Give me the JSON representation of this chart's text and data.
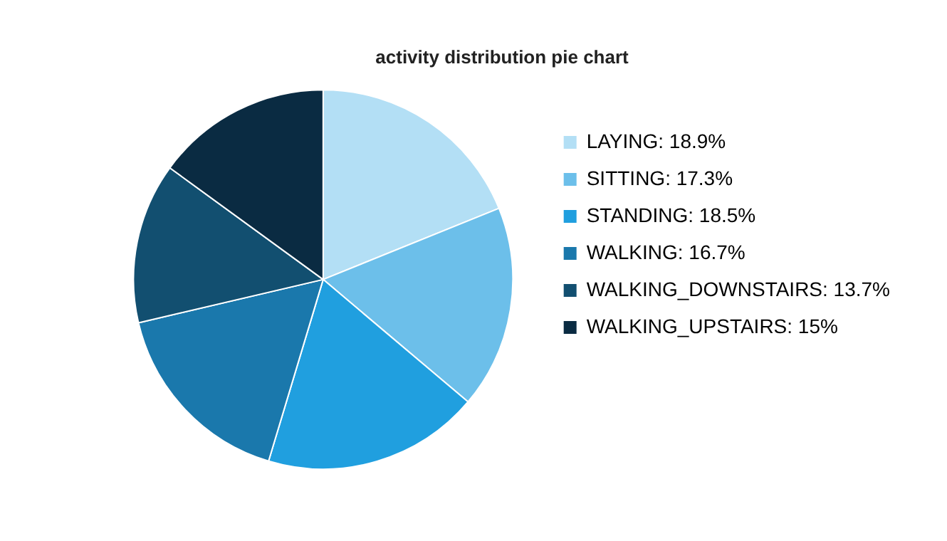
{
  "chart_data": {
    "type": "pie",
    "title": "activity distribution pie chart",
    "categories": [
      "LAYING",
      "SITTING",
      "STANDING",
      "WALKING",
      "WALKING_DOWNSTAIRS",
      "WALKING_UPSTAIRS"
    ],
    "values": [
      18.9,
      17.3,
      18.5,
      16.7,
      13.7,
      15
    ],
    "value_labels": [
      "18.9%",
      "17.3%",
      "18.5%",
      "16.7%",
      "13.7%",
      "15%"
    ],
    "colors": [
      "#b3dff5",
      "#6cbfea",
      "#209fdf",
      "#1a78ac",
      "#124f70",
      "#0a2b42"
    ],
    "legend": "right"
  }
}
